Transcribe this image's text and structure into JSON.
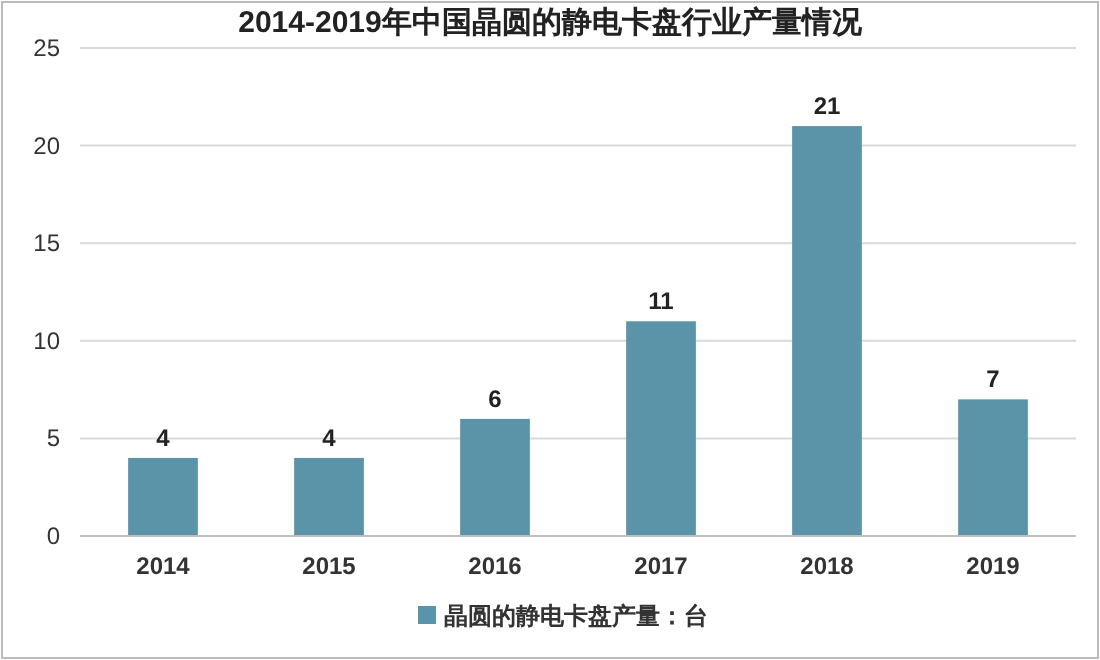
{
  "chart_data": {
    "type": "bar",
    "title": "2014-2019年中国晶圆的静电卡盘行业产量情况",
    "categories": [
      "2014",
      "2015",
      "2016",
      "2017",
      "2018",
      "2019"
    ],
    "series": [
      {
        "name": "晶圆的静电卡盘产量：台",
        "color": "#5b93a8",
        "values": [
          4,
          4,
          6,
          11,
          21,
          7
        ]
      }
    ],
    "ylim": [
      0,
      25
    ],
    "yticks": [
      0,
      5,
      10,
      15,
      20,
      25
    ],
    "grid": "y",
    "legend": "bottom",
    "data_labels": true
  }
}
